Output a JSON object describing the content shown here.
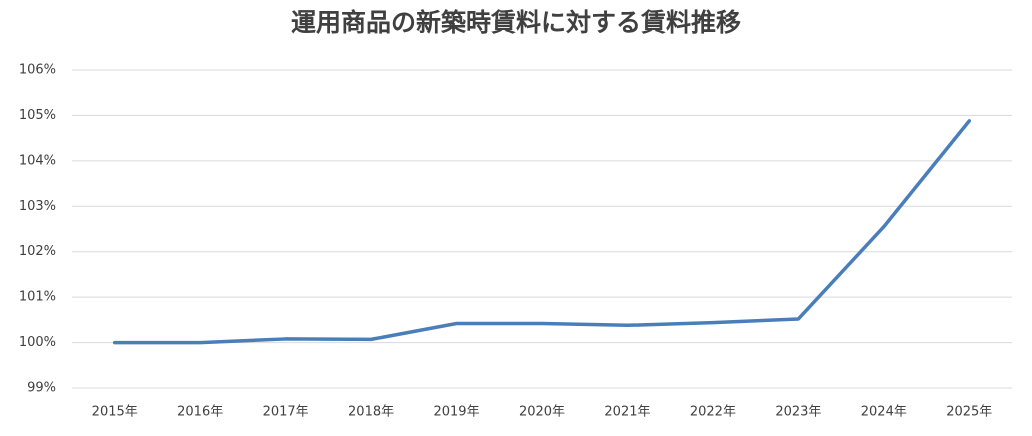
{
  "chart_data": {
    "type": "line",
    "title": "運用商品の新築時賃料に対する賃料推移",
    "categories": [
      "2015年",
      "2016年",
      "2017年",
      "2018年",
      "2019年",
      "2020年",
      "2021年",
      "2022年",
      "2023年",
      "2024年",
      "2025年"
    ],
    "series": [
      {
        "color": "#4a7ebb",
        "values": [
          100,
          100,
          100.08,
          100.07,
          100.42,
          100.42,
          100.38,
          100.44,
          100.52,
          102.55,
          104.88
        ]
      }
    ],
    "ylim": [
      99,
      106
    ],
    "yticks": [
      {
        "value": 99,
        "label": "99%"
      },
      {
        "value": 100,
        "label": "100%"
      },
      {
        "value": 101,
        "label": "101%"
      },
      {
        "value": 102,
        "label": "102%"
      },
      {
        "value": 103,
        "label": "103%"
      },
      {
        "value": 104,
        "label": "104%"
      },
      {
        "value": 105,
        "label": "105%"
      },
      {
        "value": 106,
        "label": "106%"
      }
    ],
    "grid": true
  }
}
